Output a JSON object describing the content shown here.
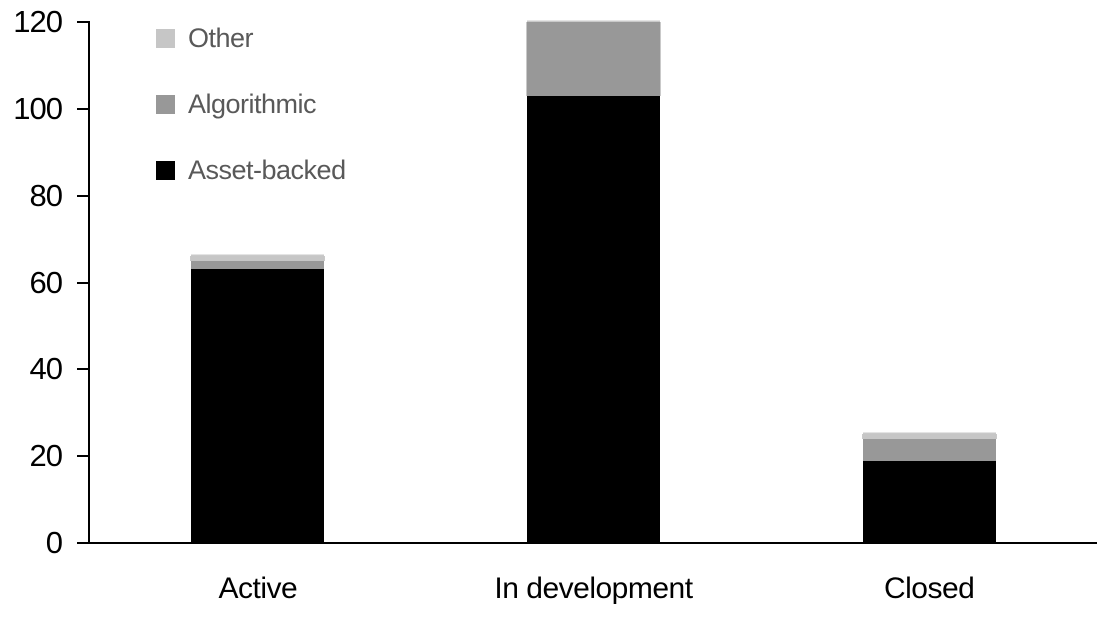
{
  "chart_data": {
    "type": "bar",
    "stacked": true,
    "title": "",
    "xlabel": "",
    "ylabel": "",
    "categories": [
      "Active",
      "In development",
      "Closed"
    ],
    "series": [
      {
        "name": "Asset-backed",
        "color": "#000000",
        "values": [
          63,
          103,
          19
        ]
      },
      {
        "name": "Algorithmic",
        "color": "#989898",
        "values": [
          2,
          17,
          5
        ]
      },
      {
        "name": "Other",
        "color": "#c6c6c6",
        "values": [
          1,
          0,
          1
        ]
      }
    ],
    "stack_totals": [
      66,
      120,
      25
    ],
    "ylim": [
      0,
      120
    ],
    "yticks": [
      0,
      20,
      40,
      60,
      80,
      100,
      120
    ],
    "grid": false,
    "legend_position": "top-left",
    "legend_order": [
      "Other",
      "Algorithmic",
      "Asset-backed"
    ]
  },
  "colors": {
    "background": "#ffffff",
    "axis": "#000000",
    "tick_label_text": "#000000",
    "category_label_text": "#000000",
    "legend_text": "#595959"
  }
}
